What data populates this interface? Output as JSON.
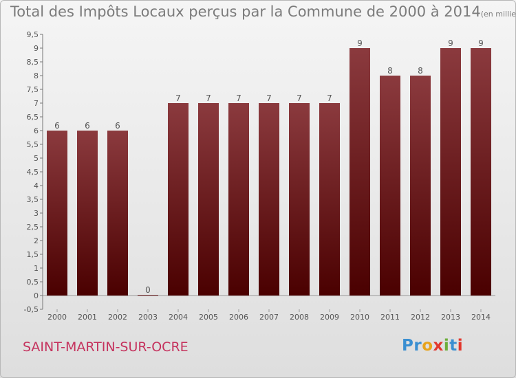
{
  "title": "Total des Impôts Locaux perçus par la Commune de 2000 à 2014",
  "title_unit": "(en milliers d'€)",
  "commune": "SAINT-MARTIN-SUR-OCRE",
  "brand": {
    "letters": [
      "P",
      "r",
      "o",
      "x",
      "i",
      "t",
      "i"
    ],
    "colors": [
      "#3a8fd1",
      "#3a8fd1",
      "#e8a31a",
      "#e2382d",
      "#6cae3a",
      "#3a8fd1",
      "#e2382d"
    ]
  },
  "colors": {
    "bar_top": "#8b3a3e",
    "bar_bottom": "#4a0000",
    "accent": "#c5325d"
  },
  "chart_data": {
    "type": "bar",
    "categories": [
      "2000",
      "2001",
      "2002",
      "2003",
      "2004",
      "2005",
      "2006",
      "2007",
      "2008",
      "2009",
      "2010",
      "2011",
      "2012",
      "2013",
      "2014"
    ],
    "values": [
      6,
      6,
      6,
      0,
      7,
      7,
      7,
      7,
      7,
      7,
      9,
      8,
      8,
      9,
      9
    ],
    "data_labels": [
      "6",
      "6",
      "6",
      "0",
      "7",
      "7",
      "7",
      "7",
      "7",
      "7",
      "9",
      "8",
      "8",
      "9",
      "9"
    ],
    "y_ticks": [
      "-0,5",
      "0",
      "0,5",
      "1",
      "1,5",
      "2",
      "2,5",
      "3",
      "3,5",
      "4",
      "4,5",
      "5",
      "5,5",
      "6",
      "6,5",
      "7",
      "7,5",
      "8",
      "8,5",
      "9",
      "9,5"
    ],
    "ylim": [
      -0.5,
      9.5
    ],
    "grid": false,
    "xlabel": "",
    "ylabel": ""
  }
}
